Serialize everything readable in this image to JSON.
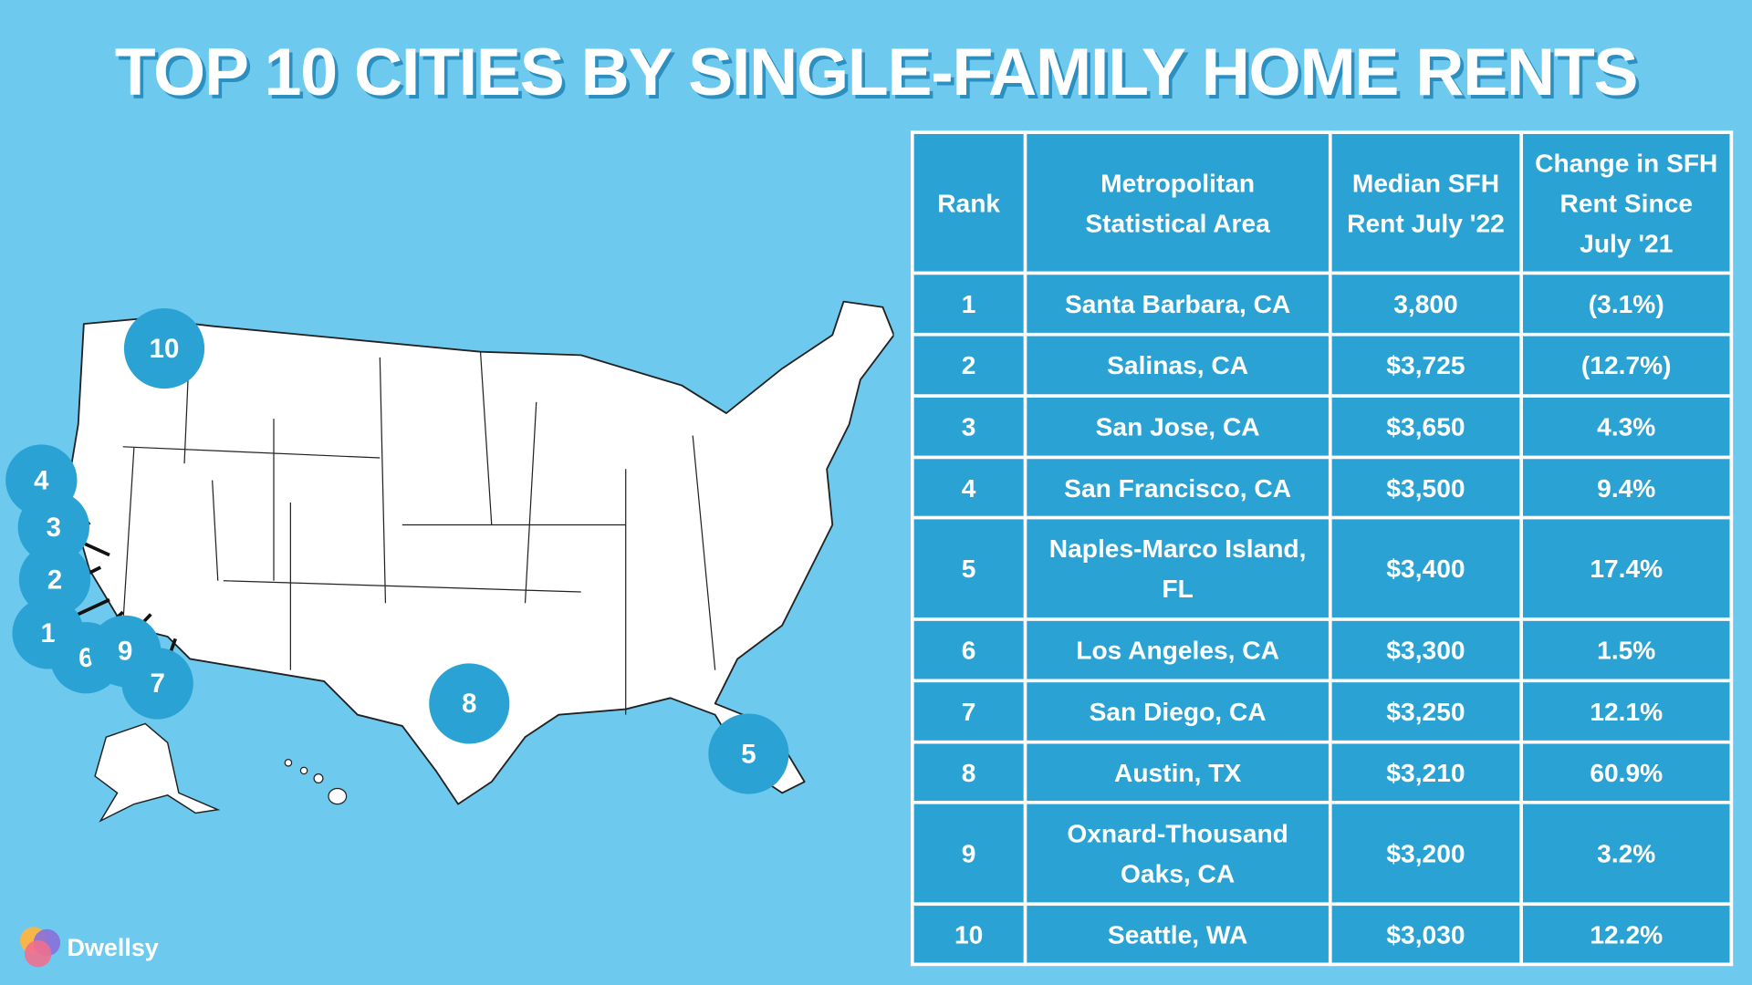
{
  "title": "TOP 10 CITIES BY SINGLE-FAMILY HOME RENTS",
  "table": {
    "header": [
      "Rank",
      "Metropolitan Statistical Area",
      "Median SFH Rent July '22",
      "Change in SFH Rent Since July '21"
    ],
    "rows": [
      [
        "1",
        "Santa Barbara, CA",
        "3,800",
        "(3.1%)"
      ],
      [
        "2",
        "Salinas, CA",
        "$3,725",
        "(12.7%)"
      ],
      [
        "3",
        "San Jose, CA",
        "$3,650",
        "4.3%"
      ],
      [
        "4",
        "San Francisco, CA",
        "$3,500",
        "9.4%"
      ],
      [
        "5",
        "Naples-Marco Island, FL",
        "$3,400",
        "17.4%"
      ],
      [
        "6",
        "Los Angeles, CA",
        "$3,300",
        "1.5%"
      ],
      [
        "7",
        "San Diego, CA",
        "$3,250",
        "12.1%"
      ],
      [
        "8",
        "Austin, TX",
        "$3,210",
        "60.9%"
      ],
      [
        "9",
        "Oxnard-Thousand Oaks, CA",
        "$3,200",
        "3.2%"
      ],
      [
        "10",
        "Seattle, WA",
        "$3,030",
        "12.2%"
      ]
    ]
  },
  "map": {
    "markers": [
      "10",
      "4",
      "3",
      "2",
      "1",
      "6",
      "9",
      "7",
      "8",
      "5"
    ]
  },
  "logo": "Dwellsy"
}
